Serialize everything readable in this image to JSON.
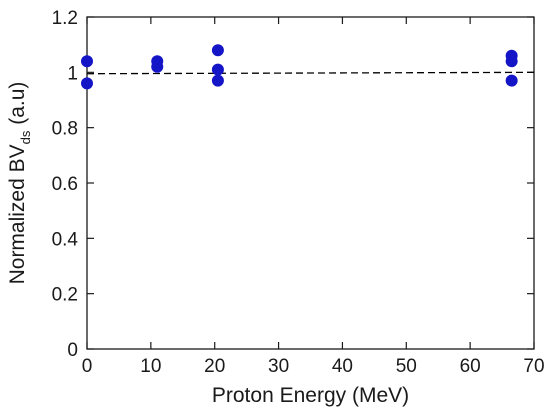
{
  "chart_data": {
    "type": "scatter",
    "xlabel": "Proton Energy (MeV)",
    "ylabel_main": "Normalized BV",
    "ylabel_sub": "ds",
    "ylabel_tail": " (a.u)",
    "xlim": [
      0,
      70
    ],
    "ylim": [
      0,
      1.2
    ],
    "xticks": [
      0,
      10,
      20,
      30,
      40,
      50,
      60,
      70
    ],
    "xtick_labels": [
      "0",
      "10",
      "20",
      "30",
      "40",
      "50",
      "60",
      "70"
    ],
    "yticks": [
      0,
      0.2,
      0.4,
      0.6,
      0.8,
      1,
      1.2
    ],
    "ytick_labels": [
      "0",
      "0.2",
      "0.4",
      "0.6",
      "0.8",
      "1",
      "1.2"
    ],
    "grid": false,
    "series": [
      {
        "color": "#1515c8",
        "points": [
          {
            "x": 0,
            "y": 1.04
          },
          {
            "x": 0,
            "y": 0.96
          },
          {
            "x": 11,
            "y": 1.04
          },
          {
            "x": 11,
            "y": 1.02
          },
          {
            "x": 20.5,
            "y": 1.08
          },
          {
            "x": 20.5,
            "y": 1.01
          },
          {
            "x": 20.5,
            "y": 0.97
          },
          {
            "x": 66.5,
            "y": 1.06
          },
          {
            "x": 66.5,
            "y": 1.04
          },
          {
            "x": 66.5,
            "y": 0.97
          }
        ]
      }
    ],
    "fit_line": {
      "style": "dashed",
      "color": "#000000",
      "points": [
        {
          "x": 0,
          "y": 0.995
        },
        {
          "x": 70,
          "y": 1.0
        }
      ]
    }
  }
}
